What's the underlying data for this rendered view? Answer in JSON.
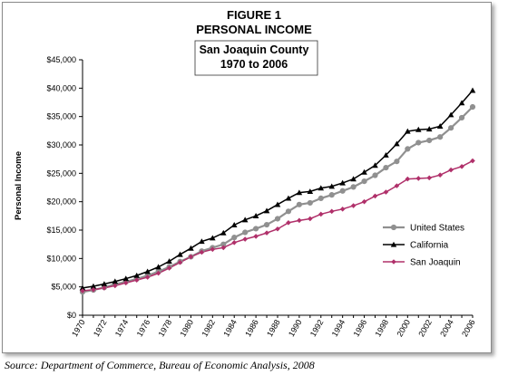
{
  "figure": {
    "label": "FIGURE 1",
    "title": "PERSONAL INCOME",
    "subtitle_line1": "San Joaquin County",
    "subtitle_line2": "1970 to 2006"
  },
  "source": "Source: Department of Commerce, Bureau of Economic Analysis, 2008",
  "chart_data": {
    "type": "line",
    "title": "FIGURE 1 PERSONAL INCOME",
    "subtitle": "San Joaquin County 1970 to 2006",
    "xlabel": "",
    "ylabel": "Personal Income",
    "x": [
      1970,
      1971,
      1972,
      1973,
      1974,
      1975,
      1976,
      1977,
      1978,
      1979,
      1980,
      1981,
      1982,
      1983,
      1984,
      1985,
      1986,
      1987,
      1988,
      1989,
      1990,
      1991,
      1992,
      1993,
      1994,
      1995,
      1996,
      1997,
      1998,
      1999,
      2000,
      2001,
      2002,
      2003,
      2004,
      2005,
      2006
    ],
    "x_tick_labels": [
      "1970",
      "1972",
      "1974",
      "1976",
      "1978",
      "1980",
      "1982",
      "1984",
      "1986",
      "1988",
      "1990",
      "1992",
      "1994",
      "1996",
      "1998",
      "2000",
      "2002",
      "2004",
      "2006"
    ],
    "y_tick_labels": [
      "$0",
      "$5,000",
      "$10,000",
      "$15,000",
      "$20,000",
      "$25,000",
      "$30,000",
      "$35,000",
      "$40,000",
      "$45,000"
    ],
    "ylim": [
      0,
      45000
    ],
    "xlim": [
      1970,
      2006
    ],
    "grid": false,
    "legend_position": "right",
    "series": [
      {
        "name": "United States",
        "color": "#909090",
        "marker": "circle",
        "values": [
          4100,
          4450,
          4900,
          5450,
          5900,
          6400,
          7000,
          7700,
          8500,
          9450,
          10300,
          11300,
          11900,
          12500,
          13700,
          14600,
          15250,
          15950,
          17000,
          18300,
          19500,
          19800,
          20600,
          21200,
          21900,
          22600,
          23600,
          24650,
          26000,
          27100,
          29300,
          30400,
          30800,
          31400,
          33000,
          34800,
          36700
        ]
      },
      {
        "name": "California",
        "color": "#000000",
        "marker": "triangle",
        "values": [
          4800,
          5100,
          5500,
          5950,
          6450,
          7000,
          7700,
          8500,
          9500,
          10700,
          11800,
          13000,
          13600,
          14500,
          15900,
          16800,
          17500,
          18400,
          19500,
          20600,
          21600,
          21800,
          22400,
          22700,
          23300,
          24000,
          25200,
          26400,
          28200,
          30200,
          32400,
          32700,
          32800,
          33300,
          35300,
          37400,
          39600
        ]
      },
      {
        "name": "San Joaquin",
        "color": "#b0306a",
        "marker": "diamond",
        "values": [
          4300,
          4500,
          4800,
          5200,
          5700,
          6200,
          6700,
          7400,
          8300,
          9300,
          10300,
          11100,
          11600,
          11900,
          12800,
          13400,
          13900,
          14500,
          15200,
          16300,
          16700,
          17000,
          17800,
          18300,
          18700,
          19300,
          20000,
          21000,
          21700,
          22800,
          24000,
          24100,
          24200,
          24700,
          25600,
          26200,
          27200
        ]
      }
    ]
  }
}
